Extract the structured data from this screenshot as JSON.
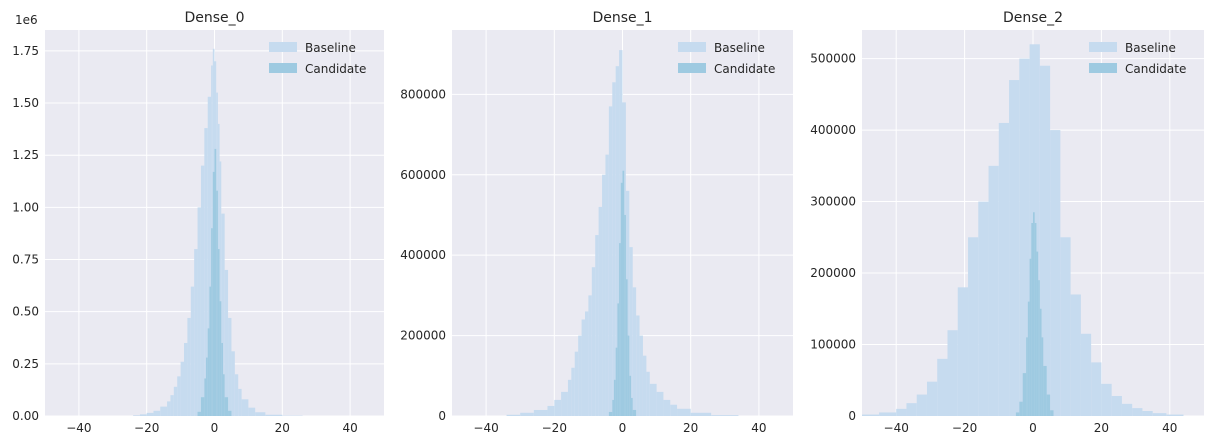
{
  "chart_data": [
    {
      "type": "bar",
      "title": "Dense_0",
      "xlabel": "",
      "ylabel": "",
      "xlim": [
        -50,
        50
      ],
      "ylim": [
        0,
        1850000
      ],
      "x_ticks": [
        -40,
        -20,
        0,
        20,
        40
      ],
      "y_ticks": [
        0,
        250000,
        500000,
        750000,
        1000000,
        1250000,
        1500000,
        1750000
      ],
      "y_tick_labels": [
        "0.00",
        "0.25",
        "0.50",
        "0.75",
        "1.00",
        "1.25",
        "1.50",
        "1.75"
      ],
      "y_offset_label": "1e6",
      "grid": true,
      "legend_position": "top-right",
      "series": [
        {
          "name": "Baseline",
          "color": "#c6dbef",
          "bins": [
            [
              -24,
              -22,
              3000
            ],
            [
              -22,
              -20,
              8000
            ],
            [
              -20,
              -18,
              15000
            ],
            [
              -18,
              -16,
              25000
            ],
            [
              -16,
              -14,
              45000
            ],
            [
              -14,
              -13,
              70000
            ],
            [
              -13,
              -12,
              100000
            ],
            [
              -12,
              -11,
              140000
            ],
            [
              -11,
              -10,
              190000
            ],
            [
              -10,
              -9,
              260000
            ],
            [
              -9,
              -8,
              350000
            ],
            [
              -8,
              -7,
              470000
            ],
            [
              -7,
              -6,
              620000
            ],
            [
              -6,
              -5,
              800000
            ],
            [
              -5,
              -4,
              1000000
            ],
            [
              -4,
              -3,
              1200000
            ],
            [
              -3,
              -2,
              1380000
            ],
            [
              -2,
              -1,
              1530000
            ],
            [
              -1,
              -0.5,
              1680000
            ],
            [
              -0.5,
              0,
              1760000
            ],
            [
              0,
              0.5,
              1700000
            ],
            [
              0.5,
              1,
              1550000
            ],
            [
              1,
              1.5,
              1400000
            ],
            [
              1.5,
              2,
              1220000
            ],
            [
              2,
              3,
              970000
            ],
            [
              3,
              4,
              700000
            ],
            [
              4,
              5,
              470000
            ],
            [
              5,
              6,
              310000
            ],
            [
              6,
              7,
              200000
            ],
            [
              7,
              8,
              130000
            ],
            [
              8,
              10,
              80000
            ],
            [
              10,
              12,
              40000
            ],
            [
              12,
              15,
              18000
            ],
            [
              15,
              20,
              6000
            ],
            [
              20,
              26,
              1500
            ]
          ]
        },
        {
          "name": "Candidate",
          "color": "#9ecae1",
          "bins": [
            [
              -5,
              -4,
              20000
            ],
            [
              -4,
              -3,
              90000
            ],
            [
              -3,
              -2.5,
              180000
            ],
            [
              -2.5,
              -2,
              280000
            ],
            [
              -2,
              -1.5,
              420000
            ],
            [
              -1.5,
              -1,
              620000
            ],
            [
              -1,
              -0.5,
              900000
            ],
            [
              -0.5,
              0,
              1170000
            ],
            [
              0,
              0.5,
              1280000
            ],
            [
              0.5,
              1,
              1080000
            ],
            [
              1,
              1.5,
              800000
            ],
            [
              1.5,
              2,
              550000
            ],
            [
              2,
              2.5,
              350000
            ],
            [
              2.5,
              3,
              200000
            ],
            [
              3,
              4,
              90000
            ],
            [
              4,
              5,
              25000
            ]
          ]
        }
      ]
    },
    {
      "type": "bar",
      "title": "Dense_1",
      "xlabel": "",
      "ylabel": "",
      "xlim": [
        -50,
        50
      ],
      "ylim": [
        0,
        960000
      ],
      "x_ticks": [
        -40,
        -20,
        0,
        20,
        40
      ],
      "y_ticks": [
        0,
        200000,
        400000,
        600000,
        800000
      ],
      "y_tick_labels": [
        "0",
        "200000",
        "400000",
        "600000",
        "800000"
      ],
      "grid": true,
      "legend_position": "top-right",
      "series": [
        {
          "name": "Baseline",
          "color": "#c6dbef",
          "bins": [
            [
              -34,
              -30,
              3000
            ],
            [
              -30,
              -26,
              8000
            ],
            [
              -26,
              -22,
              15000
            ],
            [
              -22,
              -20,
              25000
            ],
            [
              -20,
              -18,
              40000
            ],
            [
              -18,
              -16,
              60000
            ],
            [
              -16,
              -15,
              90000
            ],
            [
              -15,
              -14,
              120000
            ],
            [
              -14,
              -13,
              160000
            ],
            [
              -13,
              -12,
              200000
            ],
            [
              -12,
              -11,
              240000
            ],
            [
              -11,
              -10,
              260000
            ],
            [
              -10,
              -9,
              300000
            ],
            [
              -9,
              -8,
              370000
            ],
            [
              -8,
              -7,
              450000
            ],
            [
              -7,
              -6,
              520000
            ],
            [
              -6,
              -5,
              600000
            ],
            [
              -5,
              -4,
              650000
            ],
            [
              -4,
              -3,
              770000
            ],
            [
              -3,
              -2,
              830000
            ],
            [
              -2,
              -1,
              870000
            ],
            [
              -1,
              0,
              910000
            ],
            [
              0,
              1,
              780000
            ],
            [
              1,
              2,
              560000
            ],
            [
              2,
              3,
              420000
            ],
            [
              3,
              4,
              320000
            ],
            [
              4,
              5,
              250000
            ],
            [
              5,
              6,
              200000
            ],
            [
              6,
              7,
              150000
            ],
            [
              7,
              8,
              110000
            ],
            [
              8,
              10,
              80000
            ],
            [
              10,
              12,
              60000
            ],
            [
              12,
              14,
              40000
            ],
            [
              14,
              16,
              28000
            ],
            [
              16,
              20,
              18000
            ],
            [
              20,
              26,
              8000
            ],
            [
              26,
              34,
              2000
            ]
          ]
        },
        {
          "name": "Candidate",
          "color": "#9ecae1",
          "bins": [
            [
              -4,
              -3,
              10000
            ],
            [
              -3,
              -2.5,
              40000
            ],
            [
              -2.5,
              -2,
              90000
            ],
            [
              -2,
              -1.5,
              170000
            ],
            [
              -1.5,
              -1,
              280000
            ],
            [
              -1,
              -0.5,
              430000
            ],
            [
              -0.5,
              0,
              580000
            ],
            [
              0,
              0.5,
              610000
            ],
            [
              0.5,
              1,
              500000
            ],
            [
              1,
              1.5,
              340000
            ],
            [
              1.5,
              2,
              200000
            ],
            [
              2,
              2.5,
              100000
            ],
            [
              2.5,
              3,
              45000
            ],
            [
              3,
              4,
              15000
            ]
          ]
        }
      ]
    },
    {
      "type": "bar",
      "title": "Dense_2",
      "xlabel": "",
      "ylabel": "",
      "xlim": [
        -50,
        50
      ],
      "ylim": [
        0,
        540000
      ],
      "x_ticks": [
        -40,
        -20,
        0,
        20,
        40
      ],
      "y_ticks": [
        0,
        100000,
        200000,
        300000,
        400000,
        500000
      ],
      "y_tick_labels": [
        "0",
        "100000",
        "200000",
        "300000",
        "400000",
        "500000"
      ],
      "grid": true,
      "legend_position": "top-right",
      "series": [
        {
          "name": "Baseline",
          "color": "#c6dbef",
          "bins": [
            [
              -50,
              -45,
              2000
            ],
            [
              -45,
              -40,
              5000
            ],
            [
              -40,
              -37,
              10000
            ],
            [
              -37,
              -34,
              18000
            ],
            [
              -34,
              -31,
              30000
            ],
            [
              -31,
              -28,
              48000
            ],
            [
              -28,
              -25,
              80000
            ],
            [
              -25,
              -22,
              120000
            ],
            [
              -22,
              -19,
              180000
            ],
            [
              -19,
              -16,
              250000
            ],
            [
              -16,
              -13,
              300000
            ],
            [
              -13,
              -10,
              350000
            ],
            [
              -10,
              -7,
              410000
            ],
            [
              -7,
              -4,
              470000
            ],
            [
              -4,
              -1,
              500000
            ],
            [
              -1,
              2,
              520000
            ],
            [
              2,
              5,
              490000
            ],
            [
              5,
              8,
              400000
            ],
            [
              8,
              11,
              250000
            ],
            [
              11,
              14,
              170000
            ],
            [
              14,
              17,
              115000
            ],
            [
              17,
              20,
              75000
            ],
            [
              20,
              23,
              45000
            ],
            [
              23,
              26,
              28000
            ],
            [
              26,
              29,
              17000
            ],
            [
              29,
              32,
              11000
            ],
            [
              32,
              35,
              7000
            ],
            [
              35,
              39,
              4000
            ],
            [
              39,
              44,
              2000
            ]
          ]
        },
        {
          "name": "Candidate",
          "color": "#9ecae1",
          "bins": [
            [
              -5,
              -4,
              5000
            ],
            [
              -4,
              -3,
              20000
            ],
            [
              -3,
              -2,
              60000
            ],
            [
              -2,
              -1.5,
              110000
            ],
            [
              -1.5,
              -1,
              160000
            ],
            [
              -1,
              -0.5,
              220000
            ],
            [
              -0.5,
              0,
              270000
            ],
            [
              0,
              0.5,
              285000
            ],
            [
              0.5,
              1,
              270000
            ],
            [
              1,
              1.5,
              230000
            ],
            [
              1.5,
              2,
              190000
            ],
            [
              2,
              2.5,
              150000
            ],
            [
              2.5,
              3,
              110000
            ],
            [
              3,
              4,
              70000
            ],
            [
              4,
              5,
              30000
            ],
            [
              5,
              6,
              8000
            ]
          ]
        }
      ]
    }
  ]
}
